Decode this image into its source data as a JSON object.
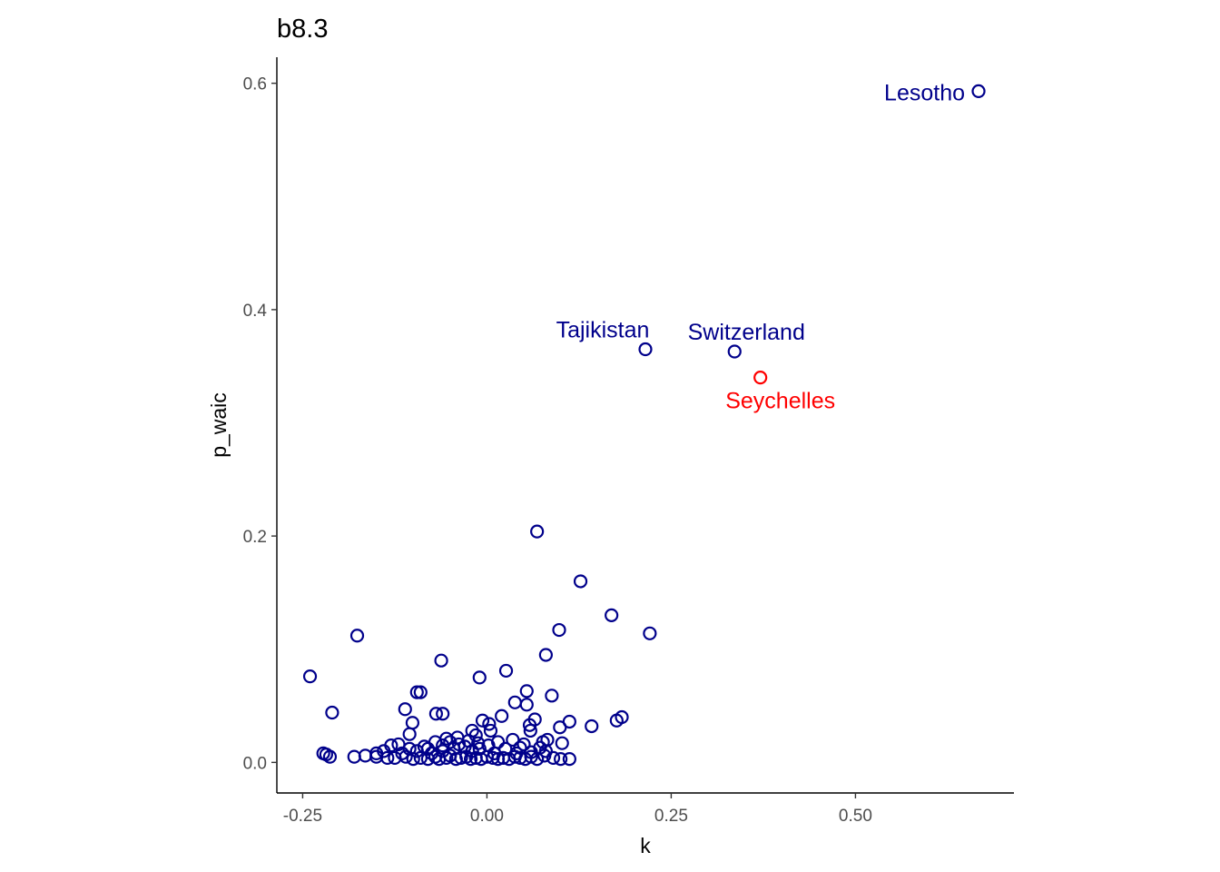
{
  "chart_data": {
    "type": "scatter",
    "title": "b8.3",
    "xlabel": "k",
    "ylabel": "p_waic",
    "xlim": [
      -0.285,
      0.715
    ],
    "ylim": [
      -0.027,
      0.623
    ],
    "x_ticks": [
      -0.25,
      0.0,
      0.25,
      0.5
    ],
    "x_tick_labels": [
      "-0.25",
      "0.00",
      "0.25",
      "0.50"
    ],
    "y_ticks": [
      0.0,
      0.2,
      0.4,
      0.6
    ],
    "y_tick_labels": [
      "0.0",
      "0.2",
      "0.4",
      "0.6"
    ],
    "grid": false,
    "colors": {
      "default": "#00008b",
      "highlight": "#ff0000"
    },
    "points": [
      {
        "x": 0.667,
        "y": 0.593,
        "label": "Lesotho",
        "highlight": false
      },
      {
        "x": 0.215,
        "y": 0.365,
        "label": "Tajikistan",
        "highlight": false
      },
      {
        "x": 0.336,
        "y": 0.363,
        "label": "Switzerland",
        "highlight": false
      },
      {
        "x": 0.371,
        "y": 0.34,
        "label": "Seychelles",
        "highlight": true
      },
      {
        "x": 0.068,
        "y": 0.204
      },
      {
        "x": 0.127,
        "y": 0.16
      },
      {
        "x": 0.169,
        "y": 0.13
      },
      {
        "x": 0.221,
        "y": 0.114
      },
      {
        "x": 0.098,
        "y": 0.117
      },
      {
        "x": 0.08,
        "y": 0.095
      },
      {
        "x": -0.176,
        "y": 0.112
      },
      {
        "x": -0.24,
        "y": 0.076
      },
      {
        "x": -0.062,
        "y": 0.09
      },
      {
        "x": -0.01,
        "y": 0.075
      },
      {
        "x": 0.026,
        "y": 0.081
      },
      {
        "x": 0.054,
        "y": 0.063
      },
      {
        "x": 0.088,
        "y": 0.059
      },
      {
        "x": -0.095,
        "y": 0.062
      },
      {
        "x": -0.09,
        "y": 0.062
      },
      {
        "x": 0.038,
        "y": 0.053
      },
      {
        "x": 0.054,
        "y": 0.051
      },
      {
        "x": -0.21,
        "y": 0.044
      },
      {
        "x": -0.111,
        "y": 0.047
      },
      {
        "x": -0.069,
        "y": 0.043
      },
      {
        "x": -0.06,
        "y": 0.043
      },
      {
        "x": 0.02,
        "y": 0.041
      },
      {
        "x": 0.065,
        "y": 0.038
      },
      {
        "x": 0.058,
        "y": 0.033
      },
      {
        "x": 0.112,
        "y": 0.036
      },
      {
        "x": 0.142,
        "y": 0.032
      },
      {
        "x": 0.176,
        "y": 0.037
      },
      {
        "x": 0.183,
        "y": 0.04
      },
      {
        "x": 0.099,
        "y": 0.031
      },
      {
        "x": -0.101,
        "y": 0.035
      },
      {
        "x": -0.006,
        "y": 0.037
      },
      {
        "x": 0.003,
        "y": 0.034
      },
      {
        "x": 0.005,
        "y": 0.028
      },
      {
        "x": -0.02,
        "y": 0.028
      },
      {
        "x": -0.015,
        "y": 0.024
      },
      {
        "x": 0.059,
        "y": 0.028
      },
      {
        "x": -0.105,
        "y": 0.025
      },
      {
        "x": 0.035,
        "y": 0.02
      },
      {
        "x": 0.076,
        "y": 0.018
      },
      {
        "x": 0.082,
        "y": 0.02
      },
      {
        "x": -0.04,
        "y": 0.022
      },
      {
        "x": -0.055,
        "y": 0.021
      },
      {
        "x": -0.07,
        "y": 0.018
      },
      {
        "x": -0.085,
        "y": 0.014
      },
      {
        "x": -0.12,
        "y": 0.016
      },
      {
        "x": -0.13,
        "y": 0.015
      },
      {
        "x": 0.05,
        "y": 0.016
      },
      {
        "x": 0.102,
        "y": 0.017
      },
      {
        "x": 0.072,
        "y": 0.013
      },
      {
        "x": -0.03,
        "y": 0.014
      },
      {
        "x": -0.045,
        "y": 0.012
      },
      {
        "x": -0.14,
        "y": 0.01
      },
      {
        "x": -0.15,
        "y": 0.008
      },
      {
        "x": -0.095,
        "y": 0.01
      },
      {
        "x": -0.075,
        "y": 0.008
      },
      {
        "x": -0.06,
        "y": 0.01
      },
      {
        "x": -0.02,
        "y": 0.01
      },
      {
        "x": -0.01,
        "y": 0.012
      },
      {
        "x": 0.01,
        "y": 0.008
      },
      {
        "x": 0.04,
        "y": 0.008
      },
      {
        "x": 0.06,
        "y": 0.009
      },
      {
        "x": 0.08,
        "y": 0.01
      },
      {
        "x": -0.222,
        "y": 0.008
      },
      {
        "x": -0.218,
        "y": 0.007
      },
      {
        "x": -0.213,
        "y": 0.005
      },
      {
        "x": -0.18,
        "y": 0.005
      },
      {
        "x": -0.165,
        "y": 0.006
      },
      {
        "x": -0.15,
        "y": 0.005
      },
      {
        "x": -0.135,
        "y": 0.004
      },
      {
        "x": -0.125,
        "y": 0.004
      },
      {
        "x": -0.11,
        "y": 0.005
      },
      {
        "x": -0.1,
        "y": 0.003
      },
      {
        "x": -0.09,
        "y": 0.004
      },
      {
        "x": -0.08,
        "y": 0.003
      },
      {
        "x": -0.07,
        "y": 0.005
      },
      {
        "x": -0.065,
        "y": 0.003
      },
      {
        "x": -0.055,
        "y": 0.004
      },
      {
        "x": -0.05,
        "y": 0.006
      },
      {
        "x": -0.042,
        "y": 0.003
      },
      {
        "x": -0.035,
        "y": 0.004
      },
      {
        "x": -0.028,
        "y": 0.005
      },
      {
        "x": -0.022,
        "y": 0.003
      },
      {
        "x": -0.015,
        "y": 0.004
      },
      {
        "x": -0.008,
        "y": 0.003
      },
      {
        "x": 0.0,
        "y": 0.005
      },
      {
        "x": 0.008,
        "y": 0.004
      },
      {
        "x": 0.015,
        "y": 0.003
      },
      {
        "x": 0.022,
        "y": 0.004
      },
      {
        "x": 0.03,
        "y": 0.003
      },
      {
        "x": 0.038,
        "y": 0.005
      },
      {
        "x": 0.045,
        "y": 0.004
      },
      {
        "x": 0.052,
        "y": 0.003
      },
      {
        "x": 0.06,
        "y": 0.005
      },
      {
        "x": 0.068,
        "y": 0.003
      },
      {
        "x": 0.078,
        "y": 0.006
      },
      {
        "x": 0.09,
        "y": 0.004
      },
      {
        "x": 0.1,
        "y": 0.003
      },
      {
        "x": 0.112,
        "y": 0.003
      },
      {
        "x": -0.06,
        "y": 0.015
      },
      {
        "x": -0.05,
        "y": 0.018
      },
      {
        "x": -0.038,
        "y": 0.016
      },
      {
        "x": -0.025,
        "y": 0.019
      },
      {
        "x": -0.012,
        "y": 0.017
      },
      {
        "x": 0.002,
        "y": 0.015
      },
      {
        "x": -0.08,
        "y": 0.012
      },
      {
        "x": -0.105,
        "y": 0.012
      },
      {
        "x": -0.115,
        "y": 0.008
      },
      {
        "x": 0.025,
        "y": 0.012
      },
      {
        "x": 0.045,
        "y": 0.013
      },
      {
        "x": 0.015,
        "y": 0.018
      }
    ]
  }
}
